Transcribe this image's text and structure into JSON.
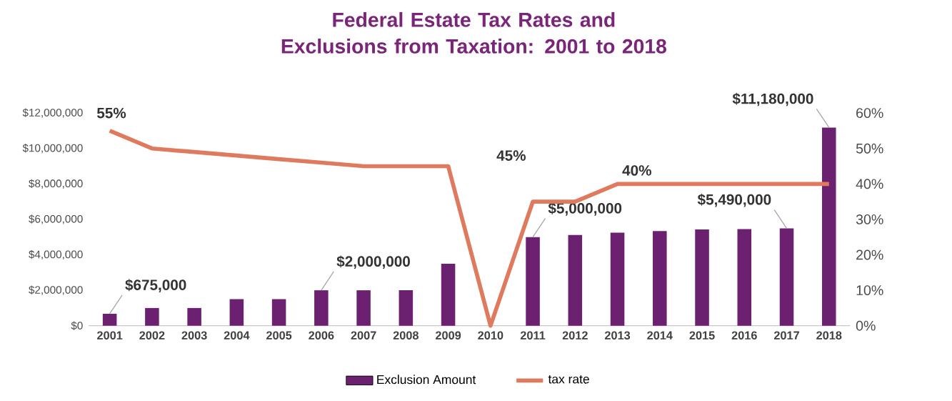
{
  "chart_data": {
    "type": "bar",
    "title": "Federal Estate Tax Rates and Exclusions from Taxation: 2001 to 2018",
    "categories": [
      "2001",
      "2002",
      "2003",
      "2004",
      "2005",
      "2006",
      "2007",
      "2008",
      "2009",
      "2010",
      "2011",
      "2012",
      "2013",
      "2014",
      "2015",
      "2016",
      "2017",
      "2018"
    ],
    "series": [
      {
        "name": "Exclusion Amount",
        "color": "#6b2170",
        "values": [
          675000,
          1000000,
          1000000,
          1500000,
          1500000,
          2000000,
          2000000,
          2000000,
          3500000,
          null,
          5000000,
          5120000,
          5250000,
          5340000,
          5430000,
          5450000,
          5490000,
          11180000
        ]
      },
      {
        "name": "tax rate",
        "type": "line",
        "axis": "y2",
        "color": "#e07a5f",
        "values": [
          55,
          50,
          49,
          48,
          47,
          46,
          45,
          45,
          45,
          0,
          35,
          35,
          40,
          40,
          40,
          40,
          40,
          40
        ]
      }
    ],
    "ylim": [
      0,
      12000000
    ],
    "yticks": [
      {
        "value": 0,
        "label": "$0"
      },
      {
        "value": 2000000,
        "label": "$2,000,000"
      },
      {
        "value": 4000000,
        "label": "$4,000,000"
      },
      {
        "value": 6000000,
        "label": "$6,000,000"
      },
      {
        "value": 8000000,
        "label": "$8,000,000"
      },
      {
        "value": 10000000,
        "label": "$10,000,000"
      },
      {
        "value": 12000000,
        "label": "$12,000,000"
      }
    ],
    "y2lim": [
      0,
      60
    ],
    "y2ticks": [
      {
        "value": 0,
        "label": "0%"
      },
      {
        "value": 10,
        "label": "10%"
      },
      {
        "value": 20,
        "label": "20%"
      },
      {
        "value": 30,
        "label": "30%"
      },
      {
        "value": 40,
        "label": "40%"
      },
      {
        "value": 50,
        "label": "50%"
      },
      {
        "value": 60,
        "label": "60%"
      }
    ],
    "annotations": [
      {
        "text": "$675,000",
        "x": "2001",
        "y": 675000
      },
      {
        "text": "$2,000,000",
        "x": "2006",
        "y": 2000000
      },
      {
        "text": "$5,000,000",
        "x": "2011",
        "y": 5000000
      },
      {
        "text": "$5,490,000",
        "x": "2017",
        "y": 5490000
      },
      {
        "text": "$11,180,000",
        "x": "2018",
        "y": 11180000
      },
      "55%",
      "45%",
      "40%"
    ],
    "legend": "bottom",
    "grid": false
  }
}
